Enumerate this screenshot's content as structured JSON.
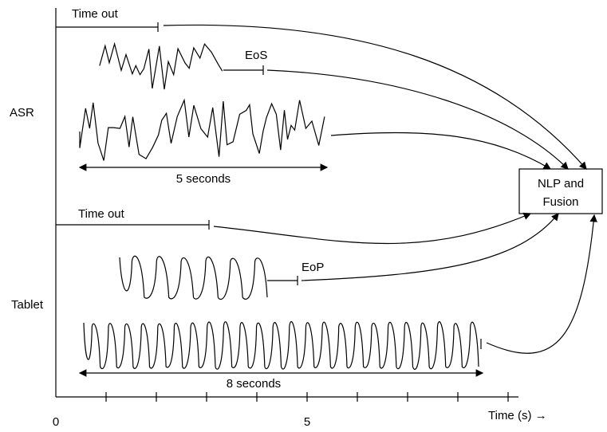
{
  "asr": {
    "label": "ASR",
    "timeout": "Time out",
    "end_marker": "EoS",
    "duration": "5 seconds"
  },
  "tablet": {
    "label": "Tablet",
    "timeout": "Time out",
    "end_marker": "EoP",
    "duration": "8 seconds"
  },
  "fusion": {
    "lines": [
      "NLP and",
      "Fusion"
    ]
  },
  "axis": {
    "tick_labels": [
      "0",
      "5"
    ],
    "title": "Time (s) →"
  }
}
